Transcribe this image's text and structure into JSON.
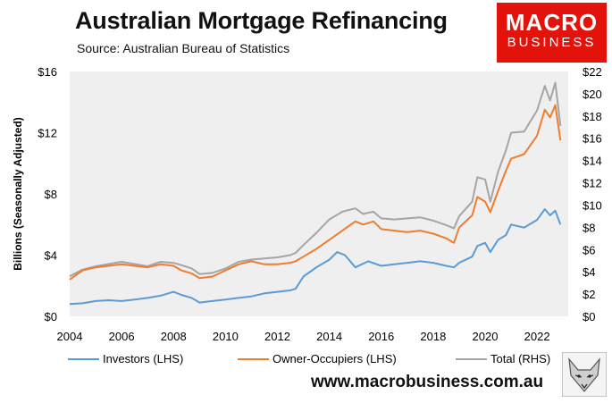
{
  "header": {
    "title": "Australian Mortgage Refinancing",
    "subtitle": "Source: Australian Bureau of Statistics"
  },
  "logo": {
    "line1": "MACRO",
    "line2": "BUSINESS",
    "color": "#e3120b"
  },
  "footer": {
    "website": "www.macrobusiness.com.au"
  },
  "colors": {
    "investors": "#5b9bd5",
    "owner_occupiers": "#ed7d31",
    "total": "#a5a5a5",
    "plot_bg": "#efefef"
  },
  "chart_data": {
    "type": "line",
    "title": "Australian Mortgage Refinancing",
    "ylabel": "Billions (Seasonally Adjusted)",
    "ylim": [
      0,
      16
    ],
    "y2lim": [
      0,
      22
    ],
    "xlim": [
      2004,
      2023.2
    ],
    "x_ticks": [
      "2004",
      "2006",
      "2008",
      "2010",
      "2012",
      "2014",
      "2016",
      "2018",
      "2020",
      "2022"
    ],
    "y_ticks": [
      "$0",
      "$4",
      "$8",
      "$12",
      "$16"
    ],
    "y2_ticks": [
      "$0",
      "$2",
      "$4",
      "$6",
      "$8",
      "$10",
      "$12",
      "$14",
      "$16",
      "$18",
      "$20",
      "$22"
    ],
    "grid": false,
    "legend_position": "bottom",
    "series": [
      {
        "name": "Investors (LHS)",
        "axis": "left",
        "x": [
          2004,
          2004.5,
          2005,
          2005.5,
          2006,
          2006.5,
          2007,
          2007.5,
          2008,
          2008.3,
          2008.7,
          2009,
          2009.5,
          2010,
          2010.5,
          2011,
          2011.5,
          2012,
          2012.5,
          2012.7,
          2013,
          2013.5,
          2014,
          2014.3,
          2014.6,
          2015,
          2015.5,
          2016,
          2016.5,
          2017,
          2017.5,
          2018,
          2018.5,
          2018.8,
          2019,
          2019.5,
          2019.7,
          2020,
          2020.2,
          2020.5,
          2020.8,
          2021,
          2021.5,
          2022,
          2022.3,
          2022.5,
          2022.7,
          2022.9
        ],
        "y": [
          0.8,
          0.85,
          1.0,
          1.05,
          1.0,
          1.1,
          1.2,
          1.35,
          1.6,
          1.4,
          1.2,
          0.9,
          1.0,
          1.1,
          1.2,
          1.3,
          1.5,
          1.6,
          1.7,
          1.8,
          2.6,
          3.2,
          3.7,
          4.2,
          4.0,
          3.2,
          3.6,
          3.3,
          3.4,
          3.5,
          3.6,
          3.5,
          3.3,
          3.2,
          3.5,
          3.9,
          4.6,
          4.8,
          4.2,
          5.0,
          5.3,
          6.0,
          5.8,
          6.3,
          7.0,
          6.6,
          6.9,
          6.0
        ]
      },
      {
        "name": "Owner-Occupiers (LHS)",
        "axis": "left",
        "x": [
          2004,
          2004.5,
          2005,
          2005.5,
          2006,
          2006.5,
          2007,
          2007.5,
          2008,
          2008.3,
          2008.7,
          2009,
          2009.5,
          2010,
          2010.5,
          2011,
          2011.5,
          2012,
          2012.5,
          2012.7,
          2013,
          2013.5,
          2014,
          2014.5,
          2015,
          2015.3,
          2015.7,
          2016,
          2016.5,
          2017,
          2017.5,
          2018,
          2018.5,
          2018.8,
          2019,
          2019.5,
          2019.7,
          2020,
          2020.2,
          2020.5,
          2020.8,
          2021,
          2021.5,
          2022,
          2022.3,
          2022.5,
          2022.7,
          2022.9
        ],
        "y": [
          2.4,
          3.0,
          3.2,
          3.3,
          3.4,
          3.3,
          3.2,
          3.4,
          3.3,
          3.0,
          2.8,
          2.5,
          2.6,
          3.0,
          3.4,
          3.6,
          3.4,
          3.4,
          3.5,
          3.6,
          3.9,
          4.4,
          5.0,
          5.6,
          6.2,
          6.0,
          6.2,
          5.7,
          5.6,
          5.5,
          5.6,
          5.4,
          5.1,
          4.8,
          5.8,
          6.6,
          7.8,
          7.5,
          6.8,
          8.2,
          9.5,
          10.3,
          10.6,
          11.8,
          13.5,
          13.0,
          13.8,
          11.5
        ]
      },
      {
        "name": "Total (RHS)",
        "axis": "right",
        "x": [
          2004,
          2004.5,
          2005,
          2005.5,
          2006,
          2006.5,
          2007,
          2007.5,
          2008,
          2008.3,
          2008.7,
          2009,
          2009.5,
          2010,
          2010.5,
          2011,
          2011.5,
          2012,
          2012.5,
          2012.7,
          2013,
          2013.5,
          2014,
          2014.5,
          2015,
          2015.3,
          2015.7,
          2016,
          2016.5,
          2017,
          2017.5,
          2018,
          2018.5,
          2018.8,
          2019,
          2019.5,
          2019.7,
          2020,
          2020.2,
          2020.5,
          2020.8,
          2021,
          2021.5,
          2022,
          2022.3,
          2022.5,
          2022.7,
          2022.9
        ],
        "y": [
          3.6,
          4.2,
          4.5,
          4.7,
          4.9,
          4.7,
          4.5,
          4.9,
          4.8,
          4.6,
          4.3,
          3.8,
          3.9,
          4.3,
          4.9,
          5.1,
          5.2,
          5.3,
          5.5,
          5.7,
          6.4,
          7.5,
          8.7,
          9.4,
          9.7,
          9.2,
          9.4,
          8.8,
          8.7,
          8.8,
          8.9,
          8.6,
          8.2,
          7.9,
          9.0,
          10.3,
          12.5,
          12.3,
          10.3,
          13.0,
          14.9,
          16.5,
          16.6,
          18.5,
          20.7,
          19.4,
          21.0,
          17.1
        ]
      }
    ]
  }
}
